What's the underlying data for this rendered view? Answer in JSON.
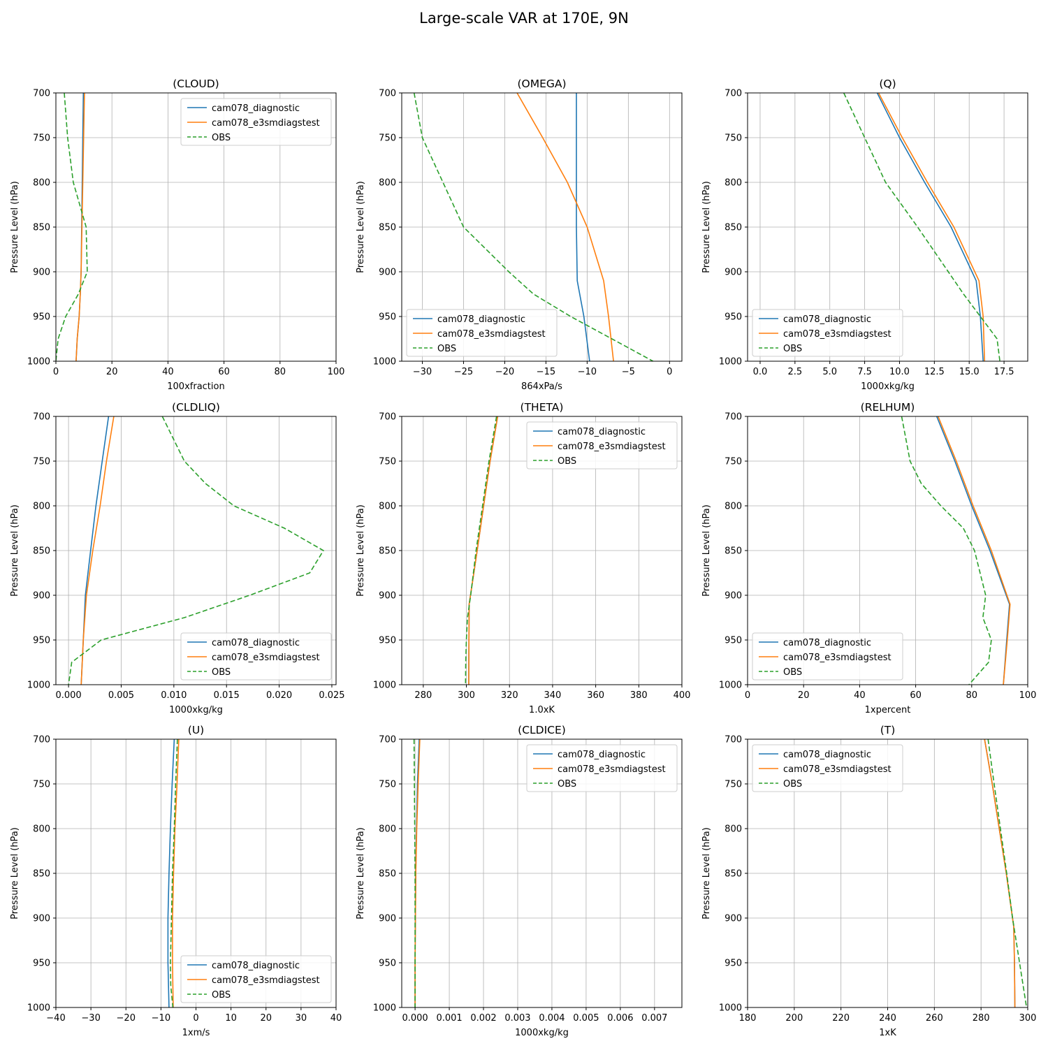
{
  "figure": {
    "suptitle": "Large-scale VAR at 170E, 9N"
  },
  "colors": {
    "diag": "#1f77b4",
    "e3sm": "#ff7f0e",
    "obs": "#2ca02c",
    "grid": "#b0b0b0"
  },
  "chart_data": [
    {
      "type": "line",
      "title": "(CLOUD)",
      "xlabel": "100xfraction",
      "ylabel": "Pressure Level (hPa)",
      "xlim": [
        0,
        100
      ],
      "ylim": [
        1000,
        700
      ],
      "grid": true,
      "legend": "top-right",
      "xticks": [
        0,
        20,
        40,
        60,
        80,
        100
      ],
      "xtick_labels": [
        "0",
        "20",
        "40",
        "60",
        "80",
        "100"
      ],
      "yticks": [
        700,
        750,
        800,
        850,
        900,
        950,
        1000
      ],
      "ytick_labels": [
        "700",
        "750",
        "800",
        "850",
        "900",
        "950",
        "1000"
      ],
      "series": [
        {
          "name": "cam078_diagnostic",
          "x": [
            9.8,
            9.6,
            9.4,
            9.2,
            9.0,
            8.7,
            8.3,
            7.6,
            7.2
          ],
          "y": [
            700,
            750,
            800,
            850,
            900,
            925,
            950,
            975,
            1000
          ]
        },
        {
          "name": "cam078_e3smdiagstest",
          "x": [
            10.2,
            9.9,
            9.6,
            9.3,
            9.0,
            8.7,
            8.3,
            7.6,
            7.2
          ],
          "y": [
            700,
            750,
            800,
            850,
            900,
            925,
            950,
            975,
            1000
          ]
        },
        {
          "name": "OBS",
          "x": [
            3.0,
            4.2,
            6.2,
            10.8,
            11.2,
            8.0,
            3.5,
            0.8,
            0.0
          ],
          "y": [
            700,
            750,
            800,
            850,
            900,
            925,
            950,
            975,
            1000
          ]
        }
      ]
    },
    {
      "type": "line",
      "title": "(OMEGA)",
      "xlabel": "864xPa/s",
      "ylabel": "Pressure Level (hPa)",
      "xlim": [
        -32.5,
        1.5
      ],
      "ylim": [
        1000,
        700
      ],
      "grid": true,
      "legend": "bottom-left",
      "xticks": [
        -30,
        -25,
        -20,
        -15,
        -10,
        -5,
        0
      ],
      "xtick_labels": [
        "−30",
        "−25",
        "−20",
        "−15",
        "−10",
        "−5",
        "0"
      ],
      "yticks": [
        700,
        750,
        800,
        850,
        900,
        950,
        1000
      ],
      "ytick_labels": [
        "700",
        "750",
        "800",
        "850",
        "900",
        "950",
        "1000"
      ],
      "series": [
        {
          "name": "cam078_diagnostic",
          "x": [
            -11.3,
            -11.3,
            -11.3,
            -11.3,
            -11.2,
            -10.4,
            -9.7
          ],
          "y": [
            700,
            750,
            800,
            850,
            910,
            950,
            1000
          ]
        },
        {
          "name": "cam078_e3smdiagstest",
          "x": [
            -18.5,
            -15.4,
            -12.4,
            -10.0,
            -8.0,
            -7.4,
            -6.8
          ],
          "y": [
            700,
            750,
            800,
            850,
            910,
            950,
            1000
          ]
        },
        {
          "name": "OBS",
          "x": [
            -31.0,
            -30.0,
            -27.5,
            -25.0,
            -19.5,
            -16.5,
            -12.0,
            -7.0,
            -2.0
          ],
          "y": [
            700,
            750,
            800,
            850,
            900,
            925,
            950,
            975,
            1000
          ]
        }
      ]
    },
    {
      "type": "line",
      "title": "(Q)",
      "xlabel": "1000xkg/kg",
      "ylabel": "Pressure Level (hPa)",
      "xlim": [
        -0.9,
        19.2
      ],
      "ylim": [
        1000,
        700
      ],
      "grid": true,
      "legend": "bottom-left",
      "xticks": [
        0,
        2.5,
        5,
        7.5,
        10,
        12.5,
        15,
        17.5
      ],
      "xtick_labels": [
        "0.0",
        "2.5",
        "5.0",
        "7.5",
        "10.0",
        "12.5",
        "15.0",
        "17.5"
      ],
      "yticks": [
        700,
        750,
        800,
        850,
        900,
        950,
        1000
      ],
      "ytick_labels": [
        "700",
        "750",
        "800",
        "850",
        "900",
        "950",
        "1000"
      ],
      "series": [
        {
          "name": "cam078_diagnostic",
          "x": [
            8.4,
            10.0,
            11.8,
            13.7,
            15.5,
            15.8,
            16.0
          ],
          "y": [
            700,
            750,
            800,
            850,
            910,
            950,
            1000
          ]
        },
        {
          "name": "cam078_e3smdiagstest",
          "x": [
            8.5,
            10.2,
            12.0,
            13.9,
            15.7,
            16.0,
            16.1
          ],
          "y": [
            700,
            750,
            800,
            850,
            910,
            950,
            1000
          ]
        },
        {
          "name": "OBS",
          "x": [
            6.0,
            7.5,
            9.0,
            11.3,
            13.5,
            14.6,
            15.8,
            17.0,
            17.2
          ],
          "y": [
            700,
            750,
            800,
            850,
            900,
            925,
            950,
            975,
            1000
          ]
        }
      ]
    },
    {
      "type": "line",
      "title": "(CLDLIQ)",
      "xlabel": "1000xkg/kg",
      "ylabel": "Pressure Level (hPa)",
      "xlim": [
        -0.0012,
        0.0254
      ],
      "ylim": [
        1000,
        700
      ],
      "grid": true,
      "legend": "bottom-right",
      "xticks": [
        0,
        0.005,
        0.01,
        0.015,
        0.02,
        0.025
      ],
      "xtick_labels": [
        "0.000",
        "0.005",
        "0.010",
        "0.015",
        "0.020",
        "0.025"
      ],
      "yticks": [
        700,
        750,
        800,
        850,
        900,
        950,
        1000
      ],
      "ytick_labels": [
        "700",
        "750",
        "800",
        "850",
        "900",
        "950",
        "1000"
      ],
      "series": [
        {
          "name": "cam078_diagnostic",
          "x": [
            0.0038,
            0.0032,
            0.0026,
            0.0021,
            0.0016,
            0.0014,
            0.0012
          ],
          "y": [
            700,
            750,
            800,
            850,
            900,
            950,
            1000
          ]
        },
        {
          "name": "cam078_e3smdiagstest",
          "x": [
            0.0043,
            0.0036,
            0.003,
            0.0023,
            0.0017,
            0.0014,
            0.0012
          ],
          "y": [
            700,
            750,
            800,
            850,
            900,
            950,
            1000
          ]
        },
        {
          "name": "OBS",
          "x": [
            0.0089,
            0.011,
            0.013,
            0.0157,
            0.0205,
            0.0242,
            0.0229,
            0.0172,
            0.011,
            0.0031,
            0.0003,
            0.0
          ],
          "y": [
            700,
            750,
            775,
            800,
            825,
            850,
            875,
            900,
            925,
            950,
            975,
            1000
          ]
        }
      ]
    },
    {
      "type": "line",
      "title": "(THETA)",
      "xlabel": "1.0xK",
      "ylabel": "Pressure Level (hPa)",
      "xlim": [
        270,
        400
      ],
      "ylim": [
        1000,
        700
      ],
      "grid": true,
      "legend": "top-right",
      "xticks": [
        280,
        300,
        320,
        340,
        360,
        380,
        400
      ],
      "xtick_labels": [
        "280",
        "300",
        "320",
        "340",
        "360",
        "380",
        "400"
      ],
      "yticks": [
        700,
        750,
        800,
        850,
        900,
        950,
        1000
      ],
      "ytick_labels": [
        "700",
        "750",
        "800",
        "850",
        "900",
        "950",
        "1000"
      ],
      "series": [
        {
          "name": "cam078_diagnostic",
          "x": [
            314.5,
            311,
            308,
            305,
            301.3,
            301.2,
            301.1
          ],
          "y": [
            700,
            750,
            800,
            850,
            910,
            950,
            1000
          ]
        },
        {
          "name": "cam078_e3smdiagstest",
          "x": [
            314.5,
            311,
            308,
            305,
            301.3,
            301.2,
            301.1
          ],
          "y": [
            700,
            750,
            800,
            850,
            910,
            950,
            1000
          ]
        },
        {
          "name": "OBS",
          "x": [
            314,
            310.5,
            307.5,
            304.5,
            302,
            300.5,
            300,
            299.7,
            299.6
          ],
          "y": [
            700,
            750,
            800,
            850,
            900,
            925,
            950,
            975,
            1000
          ]
        }
      ]
    },
    {
      "type": "line",
      "title": "(RELHUM)",
      "xlabel": "1xpercent",
      "ylabel": "Pressure Level (hPa)",
      "xlim": [
        0,
        100
      ],
      "ylim": [
        1000,
        700
      ],
      "grid": true,
      "legend": "bottom-left",
      "xticks": [
        0,
        20,
        40,
        60,
        80,
        100
      ],
      "xtick_labels": [
        "0",
        "20",
        "40",
        "60",
        "80",
        "100"
      ],
      "yticks": [
        700,
        750,
        800,
        850,
        900,
        950,
        1000
      ],
      "ytick_labels": [
        "700",
        "750",
        "800",
        "850",
        "900",
        "950",
        "1000"
      ],
      "series": [
        {
          "name": "cam078_diagnostic",
          "x": [
            67.5,
            74,
            80,
            86.5,
            93.5,
            92.5,
            91.3
          ],
          "y": [
            700,
            750,
            800,
            850,
            910,
            950,
            1000
          ]
        },
        {
          "name": "cam078_e3smdiagstest",
          "x": [
            68,
            74.5,
            80.5,
            87,
            93.7,
            92.7,
            91.3
          ],
          "y": [
            700,
            750,
            800,
            850,
            910,
            950,
            1000
          ]
        },
        {
          "name": "OBS",
          "x": [
            55,
            58,
            62,
            69,
            77,
            81,
            83,
            85,
            84,
            87,
            86,
            79
          ],
          "y": [
            700,
            750,
            775,
            800,
            825,
            850,
            875,
            900,
            925,
            950,
            975,
            1000
          ]
        }
      ]
    },
    {
      "type": "line",
      "title": "(U)",
      "xlabel": "1xm/s",
      "ylabel": "Pressure Level (hPa)",
      "xlim": [
        -40,
        40
      ],
      "ylim": [
        1000,
        700
      ],
      "grid": true,
      "legend": "bottom-right",
      "xticks": [
        -40,
        -30,
        -20,
        -10,
        0,
        10,
        20,
        30,
        40
      ],
      "xtick_labels": [
        "−40",
        "−30",
        "−20",
        "−10",
        "0",
        "10",
        "20",
        "30",
        "40"
      ],
      "yticks": [
        700,
        750,
        800,
        850,
        900,
        950,
        1000
      ],
      "ytick_labels": [
        "700",
        "750",
        "800",
        "850",
        "900",
        "950",
        "1000"
      ],
      "series": [
        {
          "name": "cam078_diagnostic",
          "x": [
            -6.2,
            -6.8,
            -7.3,
            -7.7,
            -8.0,
            -8.0,
            -7.7
          ],
          "y": [
            700,
            750,
            800,
            850,
            900,
            950,
            1000
          ]
        },
        {
          "name": "cam078_e3smdiagstest",
          "x": [
            -4.9,
            -5.4,
            -6.0,
            -6.4,
            -6.7,
            -6.7,
            -6.5
          ],
          "y": [
            700,
            750,
            800,
            850,
            900,
            950,
            1000
          ]
        },
        {
          "name": "OBS",
          "x": [
            -5.3,
            -5.8,
            -6.2,
            -6.7,
            -7.0,
            -7.3,
            -7.2,
            -6.6
          ],
          "y": [
            700,
            750,
            800,
            850,
            900,
            950,
            975,
            1000
          ]
        }
      ]
    },
    {
      "type": "line",
      "title": "(CLDICE)",
      "xlabel": "1000xkg/kg",
      "ylabel": "Pressure Level (hPa)",
      "xlim": [
        -0.00039,
        0.0078
      ],
      "ylim": [
        1000,
        700
      ],
      "grid": true,
      "legend": "top-right",
      "xticks": [
        0,
        0.001,
        0.002,
        0.003,
        0.004,
        0.005,
        0.006,
        0.007
      ],
      "xtick_labels": [
        "0.000",
        "0.001",
        "0.002",
        "0.003",
        "0.004",
        "0.005",
        "0.006",
        "0.007"
      ],
      "yticks": [
        700,
        750,
        800,
        850,
        900,
        950,
        1000
      ],
      "ytick_labels": [
        "700",
        "750",
        "800",
        "850",
        "900",
        "950",
        "1000"
      ],
      "series": [
        {
          "name": "cam078_diagnostic",
          "x": [
            0.00012,
            7e-05,
            4e-05,
            2e-05,
            1e-05,
            0.0,
            0.0
          ],
          "y": [
            700,
            750,
            800,
            850,
            900,
            950,
            1000
          ]
        },
        {
          "name": "cam078_e3smdiagstest",
          "x": [
            0.00014,
            9e-05,
            5e-05,
            2e-05,
            1e-05,
            0.0,
            0.0
          ],
          "y": [
            700,
            750,
            800,
            850,
            900,
            950,
            1000
          ]
        },
        {
          "name": "OBS",
          "x": [
            -3e-05,
            -2e-05,
            -1e-05,
            0.0,
            0.0,
            0.0,
            0.0
          ],
          "y": [
            700,
            750,
            800,
            850,
            900,
            950,
            1000
          ]
        }
      ]
    },
    {
      "type": "line",
      "title": "(T)",
      "xlabel": "1xK",
      "ylabel": "Pressure Level (hPa)",
      "xlim": [
        180,
        300
      ],
      "ylim": [
        1000,
        700
      ],
      "grid": true,
      "legend": "top-left",
      "xticks": [
        180,
        200,
        220,
        240,
        260,
        280,
        300
      ],
      "xtick_labels": [
        "180",
        "200",
        "220",
        "240",
        "260",
        "280",
        "300"
      ],
      "yticks": [
        700,
        750,
        800,
        850,
        900,
        950,
        1000
      ],
      "ytick_labels": [
        "700",
        "750",
        "800",
        "850",
        "900",
        "950",
        "1000"
      ],
      "series": [
        {
          "name": "cam078_diagnostic",
          "x": [
            281.5,
            284.8,
            287.8,
            290.8,
            294,
            294.3,
            294.5
          ],
          "y": [
            700,
            750,
            800,
            850,
            910,
            950,
            1000
          ]
        },
        {
          "name": "cam078_e3smdiagstest",
          "x": [
            281.5,
            284.8,
            287.8,
            290.8,
            294,
            294.3,
            294.5
          ],
          "y": [
            700,
            750,
            800,
            850,
            910,
            950,
            1000
          ]
        },
        {
          "name": "OBS",
          "x": [
            283,
            285.6,
            288.3,
            291,
            293.5,
            296.5,
            299.5
          ],
          "y": [
            700,
            750,
            800,
            850,
            900,
            950,
            1000
          ]
        }
      ]
    }
  ]
}
